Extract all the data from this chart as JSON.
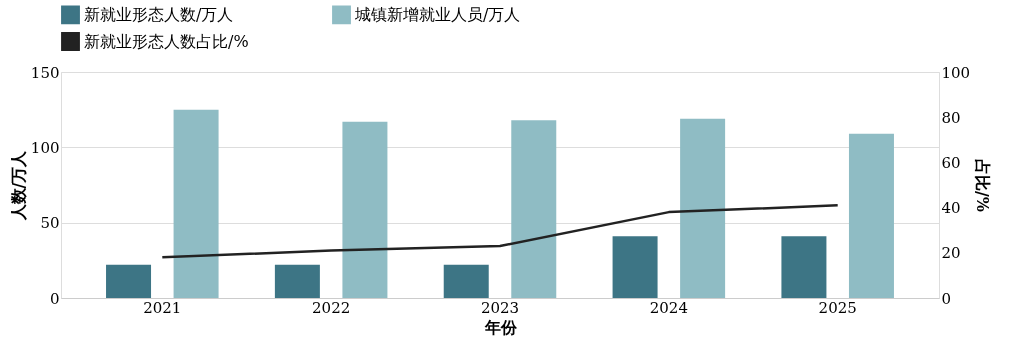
{
  "chart_data": {
    "type": "bar",
    "xlabel": "年份",
    "ylabel": "人数/万人",
    "y2label": "占比/%",
    "categories": [
      "2021",
      "2022",
      "2023",
      "2024",
      "2025"
    ],
    "series": [
      {
        "name": "新就业形态人数/万人",
        "color": "#3d7585",
        "values": [
          22,
          22,
          22,
          41,
          41
        ]
      },
      {
        "name": "城镇新增就业人员/万人",
        "color": "#8fbcc4",
        "values": [
          125,
          117,
          118,
          119,
          109
        ]
      },
      {
        "name": "新就业形态人数占比/%",
        "type": "line",
        "axis": "y2",
        "color": "#222222",
        "values": [
          18,
          21,
          23,
          38,
          41
        ]
      }
    ],
    "ylim": [
      0,
      150
    ],
    "yticks": [
      0,
      50,
      100,
      150
    ],
    "y2lim": [
      0,
      100
    ],
    "y2ticks": [
      0,
      20,
      40,
      60,
      80,
      100
    ],
    "grid": "y",
    "legend": "top",
    "marker": "none",
    "line_style": "solid"
  }
}
